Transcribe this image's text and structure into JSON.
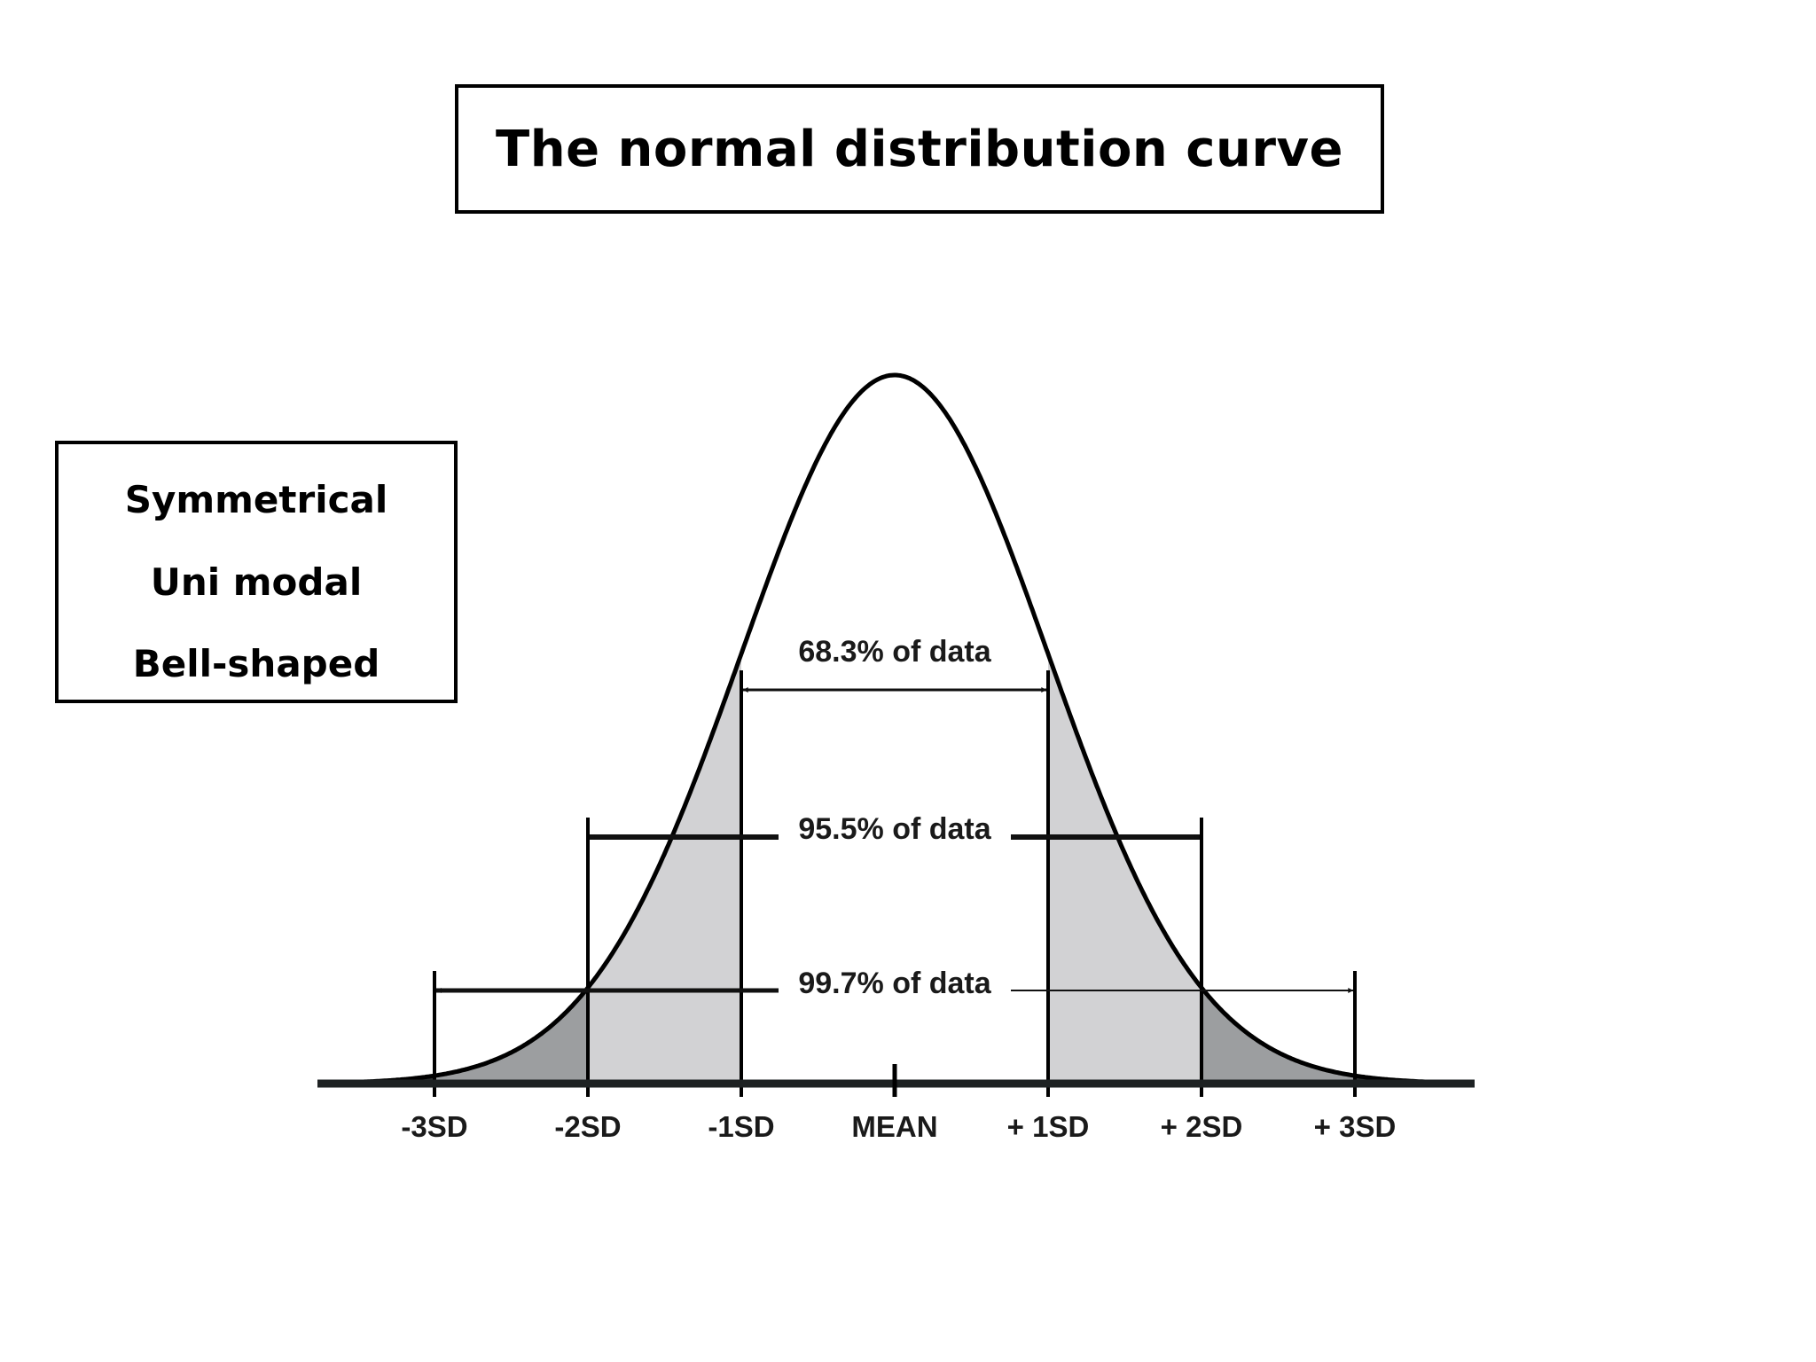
{
  "title": "The normal distribution curve",
  "properties": [
    "Symmetrical",
    "Uni modal",
    "Bell-shaped"
  ],
  "chart_data": {
    "type": "area",
    "distribution": "normal",
    "mean": 0,
    "sd": 1,
    "x_range": [
      -3.8,
      3.8
    ],
    "tick_values": [
      -3,
      -2,
      -1,
      0,
      1,
      2,
      3
    ],
    "tick_labels": [
      "-3SD",
      "-2SD",
      "-1SD",
      "MEAN",
      "+ 1SD",
      "+ 2SD",
      "+ 3SD"
    ],
    "shaded_regions": [
      {
        "from": -1,
        "to": 1,
        "color": "#ffffff"
      },
      {
        "from": -2,
        "to": -1,
        "color": "#d2d2d4"
      },
      {
        "from": 1,
        "to": 2,
        "color": "#d2d2d4"
      },
      {
        "from": -3,
        "to": -2,
        "color": "#9c9ea0"
      },
      {
        "from": 2,
        "to": 3,
        "color": "#9c9ea0"
      },
      {
        "from": -3.8,
        "to": -3,
        "color": "#2e3132"
      },
      {
        "from": 3,
        "to": 3.8,
        "color": "#2e3132"
      }
    ],
    "ranges": [
      {
        "sd": 1,
        "label": "68.3% of data"
      },
      {
        "sd": 2,
        "label": "95.5% of data"
      },
      {
        "sd": 3,
        "label": "99.7% of data"
      }
    ]
  }
}
